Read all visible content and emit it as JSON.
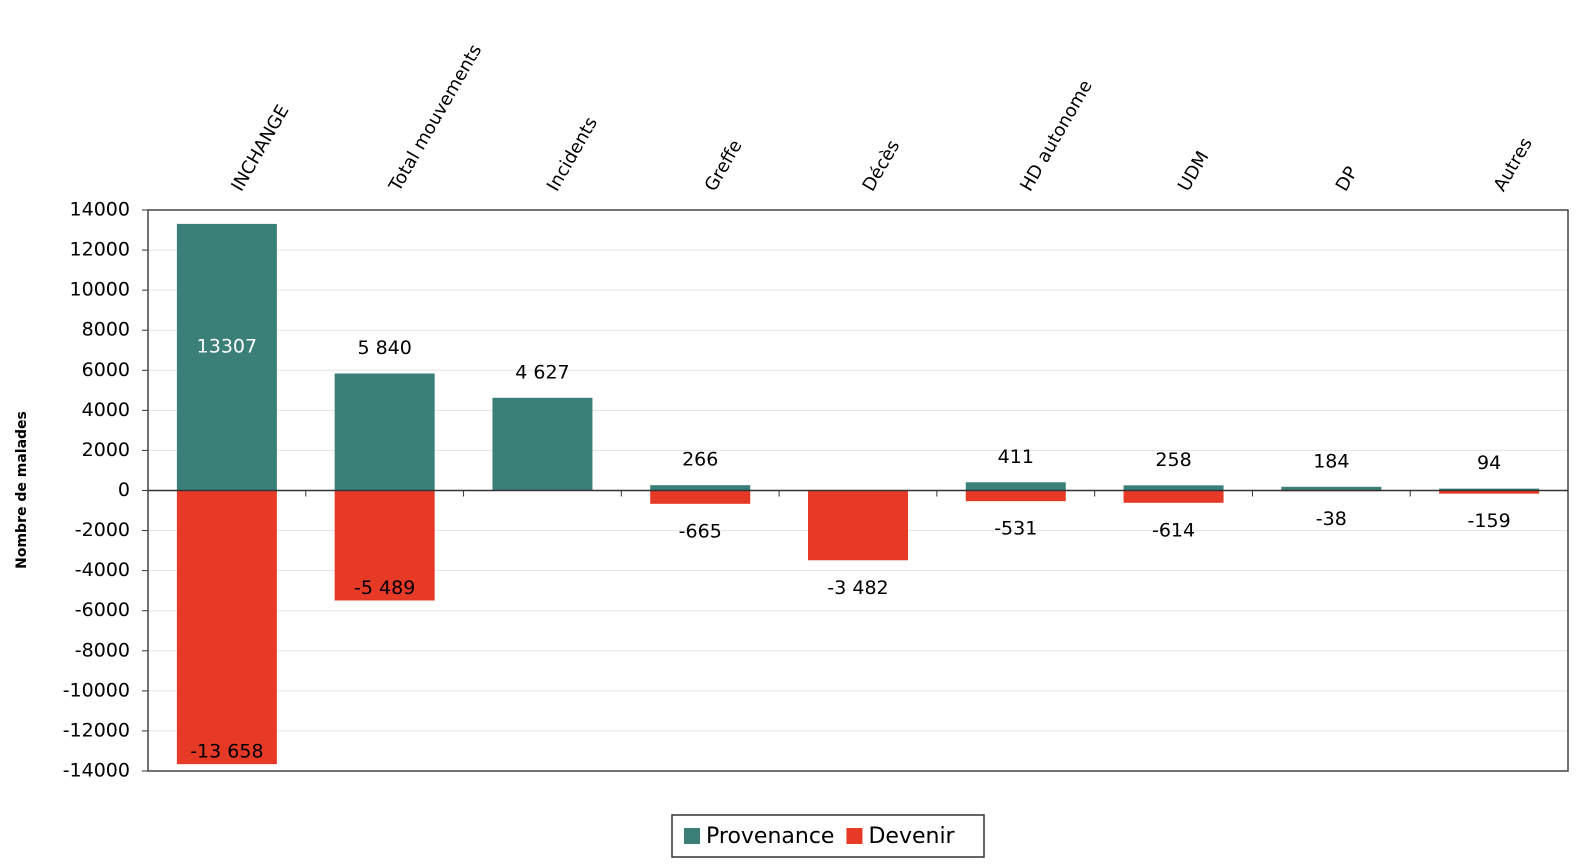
{
  "chart_data": {
    "type": "bar",
    "y_label": "Nombre de malades",
    "categories": [
      "INCHANGE",
      "Total mouvements",
      "Incidents",
      "Greffe",
      "Décès",
      "HD autonome",
      "UDM",
      "DP",
      "Autres"
    ],
    "series": [
      {
        "name": "Provenance",
        "color": "#3b7f79",
        "values": [
          13307,
          5840,
          4627,
          266,
          null,
          411,
          258,
          184,
          94
        ],
        "value_labels": [
          "13307",
          "5 840",
          "4 627",
          "266",
          null,
          "411",
          "258",
          "184",
          "94"
        ]
      },
      {
        "name": "Devenir",
        "color": "#e63a26",
        "values": [
          -13658,
          -5489,
          null,
          -665,
          -3482,
          -531,
          -614,
          -38,
          -159
        ],
        "value_labels": [
          "-13 658",
          "-5 489",
          null,
          "-665",
          "-3 482",
          "-531",
          "-614",
          "-38",
          "-159"
        ]
      }
    ],
    "ylim": [
      -14000,
      14000
    ],
    "yticks": [
      -14000,
      -12000,
      -10000,
      -8000,
      -6000,
      -4000,
      -2000,
      0,
      2000,
      4000,
      6000,
      8000,
      10000,
      12000,
      14000
    ],
    "grid": true,
    "legend": "bottom"
  }
}
